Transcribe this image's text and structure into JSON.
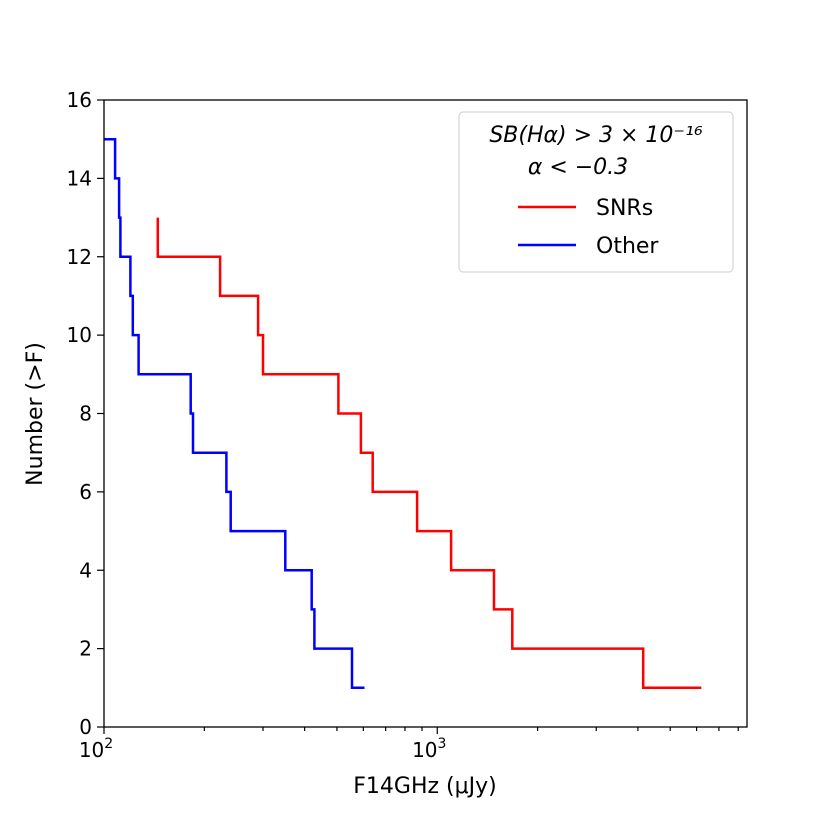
{
  "chart_data": {
    "type": "line",
    "step": true,
    "title": "",
    "xlabel": "F14GHz (μJy)",
    "ylabel": "Number (>F)",
    "xscale": "log",
    "xlim": [
      100,
      8500
    ],
    "ylim": [
      0,
      16
    ],
    "yticks": [
      0,
      2,
      4,
      6,
      8,
      10,
      12,
      14,
      16
    ],
    "xticks_major": [
      {
        "value": 100,
        "base": "10",
        "exp": "2"
      },
      {
        "value": 1000,
        "base": "10",
        "exp": "3"
      }
    ],
    "grid": false,
    "legend": {
      "position": "top-right",
      "title_lines": [
        "SB(Hα) > 3 × 10⁻¹⁶",
        "α < −0.3"
      ]
    },
    "series": [
      {
        "name": "SNRs",
        "color": "#ff0000",
        "points": [
          [
            145,
            13
          ],
          [
            145,
            12
          ],
          [
            223,
            12
          ],
          [
            223,
            11
          ],
          [
            290,
            11
          ],
          [
            290,
            10
          ],
          [
            300,
            10
          ],
          [
            300,
            9
          ],
          [
            505,
            9
          ],
          [
            505,
            8
          ],
          [
            590,
            8
          ],
          [
            590,
            7
          ],
          [
            640,
            7
          ],
          [
            640,
            6
          ],
          [
            870,
            6
          ],
          [
            870,
            5
          ],
          [
            1100,
            5
          ],
          [
            1100,
            4
          ],
          [
            1480,
            4
          ],
          [
            1480,
            3
          ],
          [
            1680,
            3
          ],
          [
            1680,
            2
          ],
          [
            4150,
            2
          ],
          [
            4150,
            1
          ],
          [
            6200,
            1
          ]
        ]
      },
      {
        "name": "Other",
        "color": "#0000ff",
        "points": [
          [
            100,
            15
          ],
          [
            108,
            15
          ],
          [
            108,
            14
          ],
          [
            111,
            14
          ],
          [
            111,
            13
          ],
          [
            112,
            13
          ],
          [
            112,
            12
          ],
          [
            120,
            12
          ],
          [
            120,
            11
          ],
          [
            122,
            11
          ],
          [
            122,
            10
          ],
          [
            127,
            10
          ],
          [
            127,
            9
          ],
          [
            182,
            9
          ],
          [
            182,
            8
          ],
          [
            185,
            8
          ],
          [
            185,
            7
          ],
          [
            233,
            7
          ],
          [
            233,
            6
          ],
          [
            240,
            6
          ],
          [
            240,
            5
          ],
          [
            350,
            5
          ],
          [
            350,
            4
          ],
          [
            420,
            4
          ],
          [
            420,
            3
          ],
          [
            428,
            3
          ],
          [
            428,
            2
          ],
          [
            555,
            2
          ],
          [
            555,
            1
          ],
          [
            605,
            1
          ]
        ]
      }
    ]
  }
}
